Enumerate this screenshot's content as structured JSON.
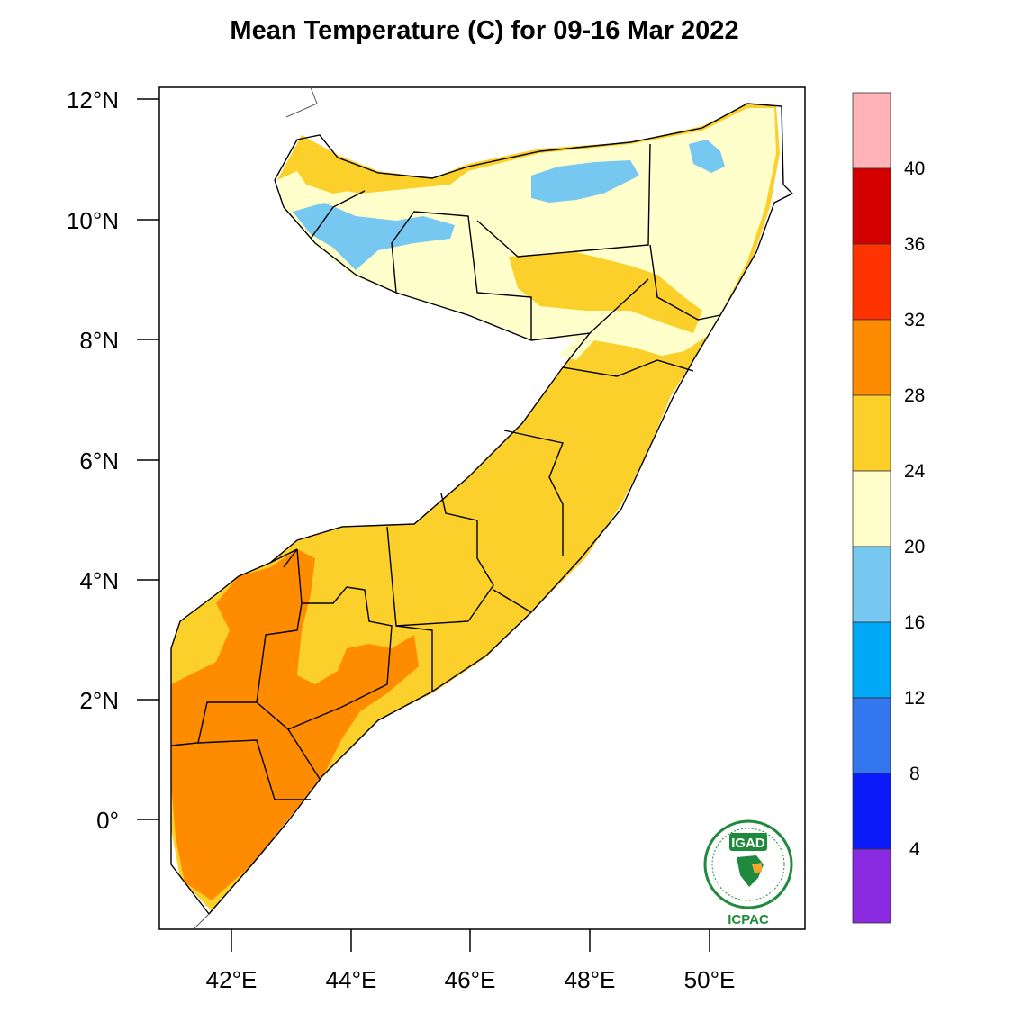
{
  "title": "Mean Temperature (C) for 09-16 Mar 2022",
  "y_axis_labels": [
    "12°N",
    "10°N",
    "8°N",
    "6°N",
    "4°N",
    "2°N",
    "0°"
  ],
  "x_axis_labels": [
    "42°E",
    "44°E",
    "46°E",
    "48°E",
    "50°E"
  ],
  "colorbar": {
    "labels": [
      "40",
      "36",
      "32",
      "28",
      "24",
      "20",
      "16",
      "12",
      "8",
      "4"
    ],
    "colors": [
      "#ffb3b8",
      "#d40000",
      "#ff3300",
      "#ff8c00",
      "#fcd02b",
      "#ffffcc",
      "#77c8f0",
      "#00a8f8",
      "#3377ee",
      "#0a1af8",
      "#8a2be2"
    ]
  },
  "logo": {
    "name": "IGAD",
    "caption": "ICPAC",
    "ring_text": "INTERGOVERNMENTAL AUTHORITY ON DEVELOPMENT"
  },
  "legend_colors": {
    "t20_24": "#ffffcc",
    "t24_28": "#fcd02b",
    "t28_32": "#ff8c00",
    "t16_20": "#77c8f0"
  }
}
